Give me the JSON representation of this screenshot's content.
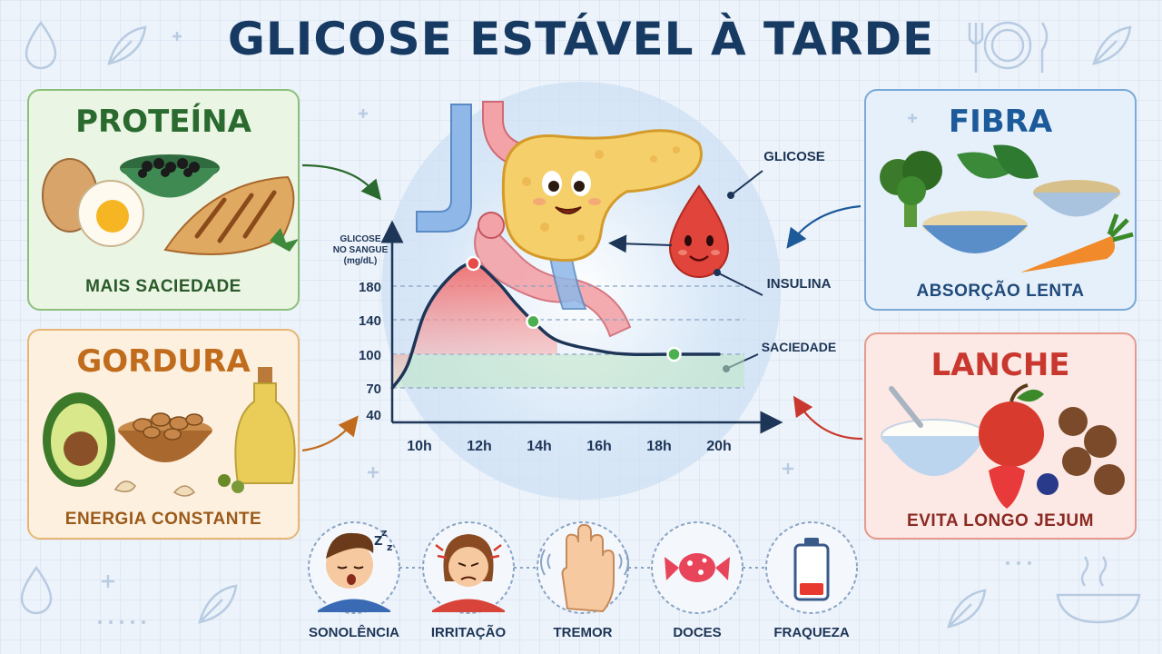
{
  "title": "GLICOSE ESTÁVEL À TARDE",
  "cards": {
    "protein": {
      "title": "PROTEÍNA",
      "subtitle": "MAIS SACIEDADE"
    },
    "fat": {
      "title": "GORDURA",
      "subtitle": "ENERGIA CONSTANTE"
    },
    "fiber": {
      "title": "FIBRA",
      "subtitle": "ABSORÇÃO LENTA"
    },
    "snack": {
      "title": "LANCHE",
      "subtitle": "EVITA LONGO JEJUM"
    }
  },
  "callouts": {
    "glucose": "GLICOSE",
    "insulin": "INSULINA",
    "satiety": "SACIEDADE"
  },
  "chart_data": {
    "type": "line",
    "ylabel_lines": [
      "GLICOSE",
      "NO SANGUE",
      "(mg/dL)"
    ],
    "y_ticks": [
      40,
      70,
      100,
      140,
      180
    ],
    "x_ticks": [
      "10h",
      "12h",
      "14h",
      "16h",
      "18h",
      "20h"
    ],
    "ylim": [
      40,
      200
    ],
    "series": [
      {
        "x": [
          9.1,
          9.6,
          10.2,
          11.0,
          11.8,
          12.6,
          13.2,
          13.8,
          14.6,
          16,
          17,
          18.5,
          20
        ],
        "y": [
          70,
          90,
          150,
          190,
          207,
          185,
          160,
          138,
          116,
          104,
          100,
          100,
          100
        ]
      }
    ],
    "markers": [
      {
        "x": 11.8,
        "y": 207,
        "color": "#e84a4a"
      },
      {
        "x": 13.8,
        "y": 138,
        "color": "#4caf50"
      },
      {
        "x": 18.5,
        "y": 100,
        "color": "#4caf50"
      }
    ],
    "range_band": [
      70,
      100
    ]
  },
  "symptoms": [
    "SONOLÊNCIA",
    "IRRITAÇÃO",
    "TREMOR",
    "DOCES",
    "FRAQUEZA"
  ],
  "colors": {
    "title": "#173a63",
    "curve": "#1d3557",
    "peak_fill": "#f07a7a",
    "stable_band": "#bfe6c4"
  }
}
